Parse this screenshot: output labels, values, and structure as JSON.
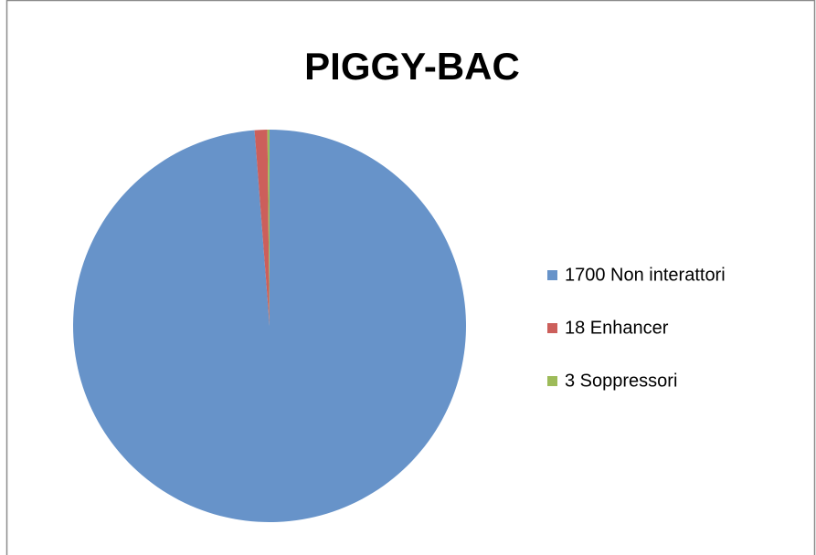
{
  "chart_data": {
    "type": "pie",
    "title": "PIGGY-BAC",
    "categories": [
      "1700 Non interattori",
      "18 Enhancer",
      "3 Soppressori"
    ],
    "values": [
      1700,
      18,
      3
    ],
    "colors": [
      "#6793c9",
      "#cc5f5b",
      "#9dbb59"
    ],
    "legend": "right"
  }
}
